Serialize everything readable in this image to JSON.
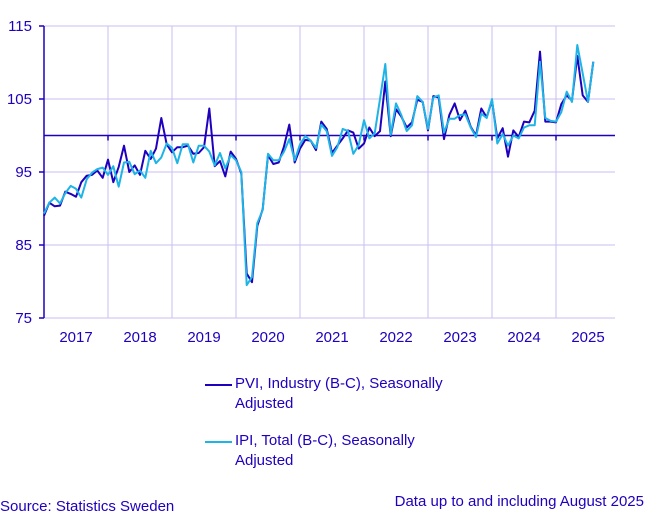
{
  "chart_data": {
    "type": "line",
    "title": "",
    "xlabel": "",
    "ylabel": "",
    "ylim": [
      75,
      115
    ],
    "yticks": [
      75,
      85,
      95,
      105,
      115
    ],
    "xticks": [
      "2017",
      "2018",
      "2019",
      "2020",
      "2021",
      "2022",
      "2023",
      "2024",
      "2025"
    ],
    "x_start": "2017-01",
    "x_end": "2025-08",
    "frequency": "monthly",
    "reference_line": 100,
    "grid": true,
    "legend_position": "bottom",
    "series": [
      {
        "name": "PVI, Industry (B-C), Seasonally Adjusted",
        "color": "#1e00be",
        "values": [
          89.0,
          90.8,
          90.3,
          90.4,
          92.3,
          92.0,
          91.6,
          93.6,
          94.5,
          94.6,
          95.2,
          94.2,
          96.7,
          93.6,
          95.7,
          98.6,
          95.0,
          95.9,
          94.6,
          97.9,
          96.8,
          98.2,
          102.4,
          98.8,
          97.7,
          98.4,
          98.4,
          98.6,
          97.5,
          97.6,
          98.4,
          103.7,
          95.8,
          96.5,
          94.4,
          97.8,
          96.8,
          94.8,
          81.1,
          79.9,
          87.6,
          89.9,
          97.3,
          96.1,
          96.3,
          98.5,
          101.5,
          96.3,
          98.2,
          99.4,
          99.3,
          98.0,
          101.9,
          100.9,
          97.6,
          98.6,
          99.6,
          100.7,
          100.4,
          98.2,
          98.9,
          101.1,
          99.9,
          100.6,
          107.4,
          99.9,
          103.6,
          102.6,
          101.1,
          101.8,
          104.9,
          104.6,
          100.7,
          105.4,
          105.2,
          99.5,
          102.8,
          104.4,
          102.1,
          103.4,
          101.2,
          100.0,
          103.7,
          102.5,
          104.8,
          99.6,
          101.0,
          97.1,
          100.7,
          99.8,
          101.9,
          101.8,
          103.4,
          111.5,
          101.9,
          101.9,
          101.8,
          104.3,
          105.5,
          104.8,
          110.9,
          105.5,
          104.6,
          110.1
        ]
      },
      {
        "name": "IPI, Total (B-C), Seasonally Adjusted",
        "color": "#1eb4e6",
        "values": [
          89.3,
          90.8,
          91.5,
          90.7,
          92.1,
          93.1,
          92.7,
          91.5,
          94.0,
          94.9,
          95.4,
          95.6,
          94.6,
          95.8,
          93.0,
          96.3,
          96.4,
          94.7,
          95.2,
          94.2,
          97.9,
          96.2,
          97.0,
          98.9,
          98.3,
          96.2,
          98.8,
          98.8,
          96.3,
          98.6,
          98.6,
          97.8,
          95.9,
          97.6,
          95.5,
          97.3,
          96.6,
          95.0,
          79.5,
          80.6,
          88.0,
          89.8,
          97.5,
          96.6,
          96.6,
          97.8,
          99.5,
          96.6,
          98.8,
          99.9,
          99.3,
          98.3,
          101.5,
          100.6,
          97.2,
          98.4,
          100.9,
          100.6,
          97.5,
          98.7,
          102.1,
          99.6,
          100.3,
          105.0,
          109.8,
          100.1,
          104.4,
          102.8,
          100.6,
          101.4,
          105.4,
          104.6,
          100.9,
          105.2,
          105.5,
          100.4,
          102.3,
          102.3,
          102.8,
          102.9,
          101.1,
          99.8,
          103.0,
          102.4,
          105.0,
          98.9,
          100.2,
          98.6,
          100.0,
          99.6,
          101.1,
          101.4,
          101.4,
          110.1,
          102.4,
          102.0,
          101.9,
          103.2,
          106.0,
          104.6,
          112.4,
          108.5,
          104.6,
          110.1
        ]
      }
    ]
  },
  "legend": {
    "items": [
      {
        "label_line1": "PVI, Industry (B-C), Seasonally",
        "label_line2": "Adjusted",
        "color": "#1e00be"
      },
      {
        "label_line1": "IPI, Total (B-C), Seasonally",
        "label_line2": "Adjusted",
        "color": "#1eb4e6"
      }
    ]
  },
  "footer": {
    "source": "Source: Statistics Sweden",
    "note": "Data up to and including August 2025"
  }
}
